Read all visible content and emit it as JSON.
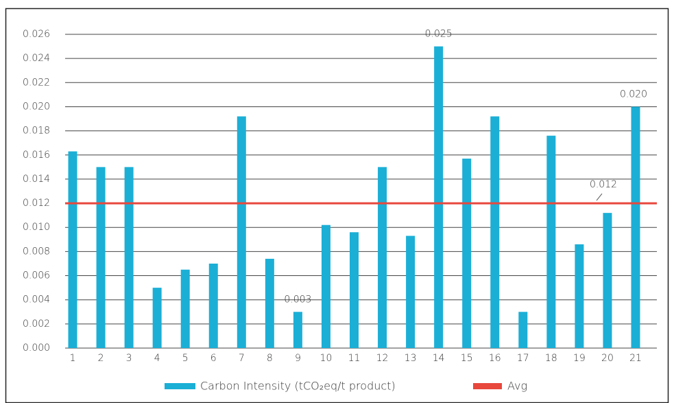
{
  "chart_data": {
    "type": "bar",
    "categories": [
      "1",
      "2",
      "3",
      "4",
      "5",
      "6",
      "7",
      "8",
      "9",
      "10",
      "11",
      "12",
      "13",
      "14",
      "15",
      "16",
      "17",
      "18",
      "19",
      "20",
      "21"
    ],
    "series": [
      {
        "name": "Carbon Intensity (tCO₂eq/t product)",
        "color": "#1bafd6",
        "values": [
          0.0163,
          0.015,
          0.015,
          0.005,
          0.0065,
          0.007,
          0.0192,
          0.0074,
          0.003,
          0.0102,
          0.0096,
          0.015,
          0.0093,
          0.025,
          0.0157,
          0.0192,
          0.003,
          0.0176,
          0.0086,
          0.0112,
          0.02
        ],
        "value_labels": [
          null,
          null,
          null,
          null,
          null,
          null,
          null,
          null,
          "0.003",
          null,
          null,
          null,
          null,
          "0.025",
          null,
          null,
          null,
          null,
          null,
          null,
          "0.020"
        ]
      }
    ],
    "avg": {
      "name": "Avg",
      "value": 0.012,
      "color": "#e8473c"
    },
    "ylim": [
      0,
      0.026
    ],
    "yticks": [
      {
        "value": 0,
        "label": "0.000"
      },
      {
        "value": 0.002,
        "label": "0.002"
      },
      {
        "value": 0.004,
        "label": "0.004"
      },
      {
        "value": 0.006,
        "label": "0.006"
      },
      {
        "value": 0.008,
        "label": "0.008"
      },
      {
        "value": 0.01,
        "label": "0.010"
      },
      {
        "value": 0.012,
        "label": "0.012"
      },
      {
        "value": 0.014,
        "label": "0.014"
      },
      {
        "value": 0.016,
        "label": "0.016"
      },
      {
        "value": 0.018,
        "label": "0.018"
      },
      {
        "value": 0.02,
        "label": "0.020"
      },
      {
        "value": 0.022,
        "label": "0.022"
      },
      {
        "value": 0.024,
        "label": "0.024"
      },
      {
        "value": 0.026,
        "label": "0.026"
      }
    ],
    "grid": true
  }
}
